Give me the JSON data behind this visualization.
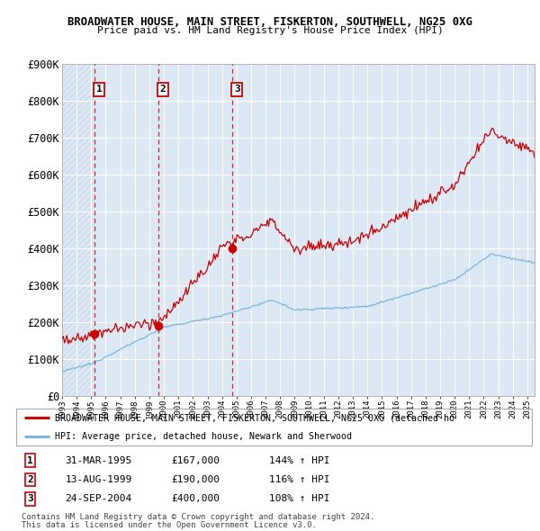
{
  "title1": "BROADWATER HOUSE, MAIN STREET, FISKERTON, SOUTHWELL, NG25 0XG",
  "title2": "Price paid vs. HM Land Registry's House Price Index (HPI)",
  "ylim": [
    0,
    900000
  ],
  "yticks": [
    0,
    100000,
    200000,
    300000,
    400000,
    500000,
    600000,
    700000,
    800000,
    900000
  ],
  "ytick_labels": [
    "£0",
    "£100K",
    "£200K",
    "£300K",
    "£400K",
    "£500K",
    "£600K",
    "£700K",
    "£800K",
    "£900K"
  ],
  "bg_color": "#dce9f5",
  "hatch_color": "#b8cfe0",
  "grid_color": "#ffffff",
  "sale_year_nums": [
    1995.25,
    1999.62,
    2004.73
  ],
  "sale_prices": [
    167000,
    190000,
    400000
  ],
  "sale_labels": [
    "1",
    "2",
    "3"
  ],
  "legend_red": "BROADWATER HOUSE, MAIN STREET, FISKERTON, SOUTHWELL, NG25 0XG (detached ho",
  "legend_blue": "HPI: Average price, detached house, Newark and Sherwood",
  "table_rows": [
    [
      "1",
      "31-MAR-1995",
      "£167,000",
      "144% ↑ HPI"
    ],
    [
      "2",
      "13-AUG-1999",
      "£190,000",
      "116% ↑ HPI"
    ],
    [
      "3",
      "24-SEP-2004",
      "£400,000",
      "108% ↑ HPI"
    ]
  ],
  "footnote1": "Contains HM Land Registry data © Crown copyright and database right 2024.",
  "footnote2": "This data is licensed under the Open Government Licence v3.0.",
  "red_color": "#cc0000",
  "blue_color": "#7ab4e0",
  "xmin": 1993.0,
  "xmax": 2025.5
}
